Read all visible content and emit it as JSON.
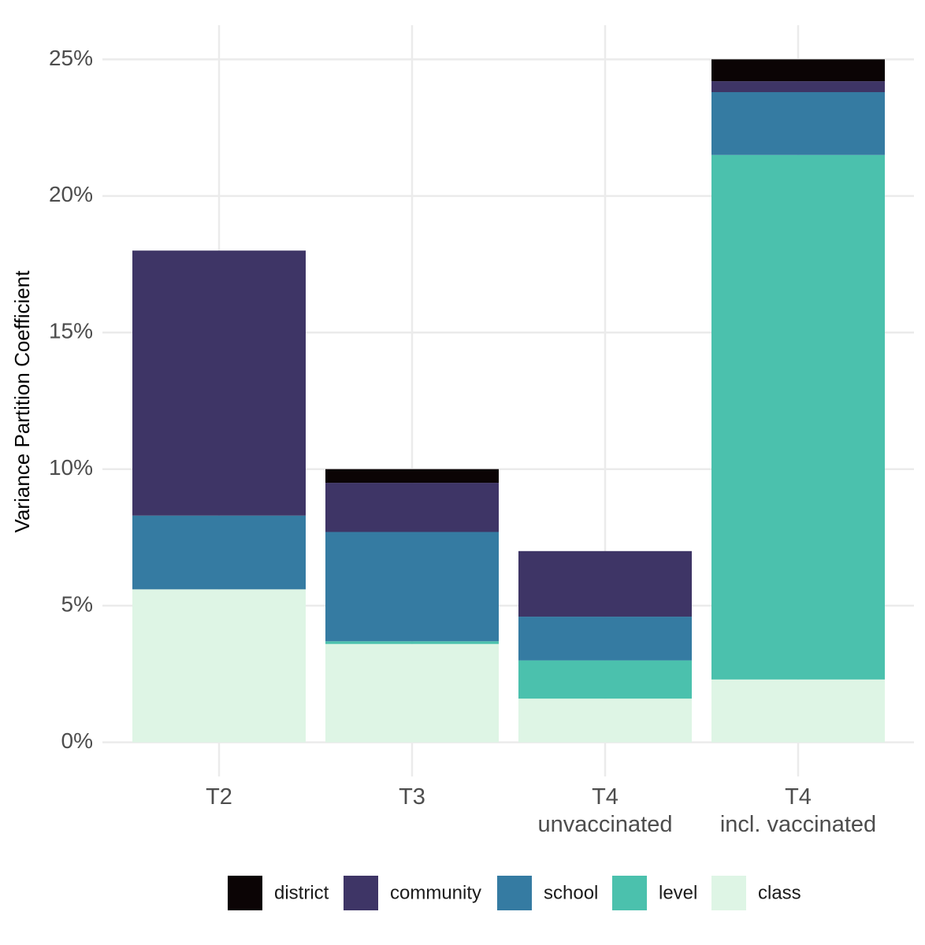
{
  "chart_data": {
    "type": "stacked_bar",
    "y_label": "Variance Partition Coefficient",
    "categories": [
      "T2",
      "T3",
      "T4\nunvaccinated",
      "T4\nincl. vaccinated"
    ],
    "series": [
      {
        "name": "district",
        "color": "#0b0405",
        "values": [
          0,
          0.5,
          0,
          0.8
        ]
      },
      {
        "name": "community",
        "color": "#3e3566",
        "values": [
          9.7,
          1.8,
          2.4,
          0.4
        ]
      },
      {
        "name": "school",
        "color": "#357ba2",
        "values": [
          2.7,
          4.0,
          1.6,
          2.3
        ]
      },
      {
        "name": "level",
        "color": "#4bc1ad",
        "values": [
          0,
          0.1,
          1.4,
          19.2
        ]
      },
      {
        "name": "class",
        "color": "#def5e5",
        "values": [
          5.6,
          3.6,
          1.6,
          2.3
        ]
      }
    ],
    "ylim": [
      -1.25,
      26.25
    ],
    "yticks": [
      {
        "value": 0,
        "label": "0%"
      },
      {
        "value": 5,
        "label": "5%"
      },
      {
        "value": 10,
        "label": "10%"
      },
      {
        "value": 15,
        "label": "15%"
      },
      {
        "value": 20,
        "label": "20%"
      },
      {
        "value": 25,
        "label": "25%"
      }
    ],
    "grid": true,
    "legend": "bottom"
  }
}
